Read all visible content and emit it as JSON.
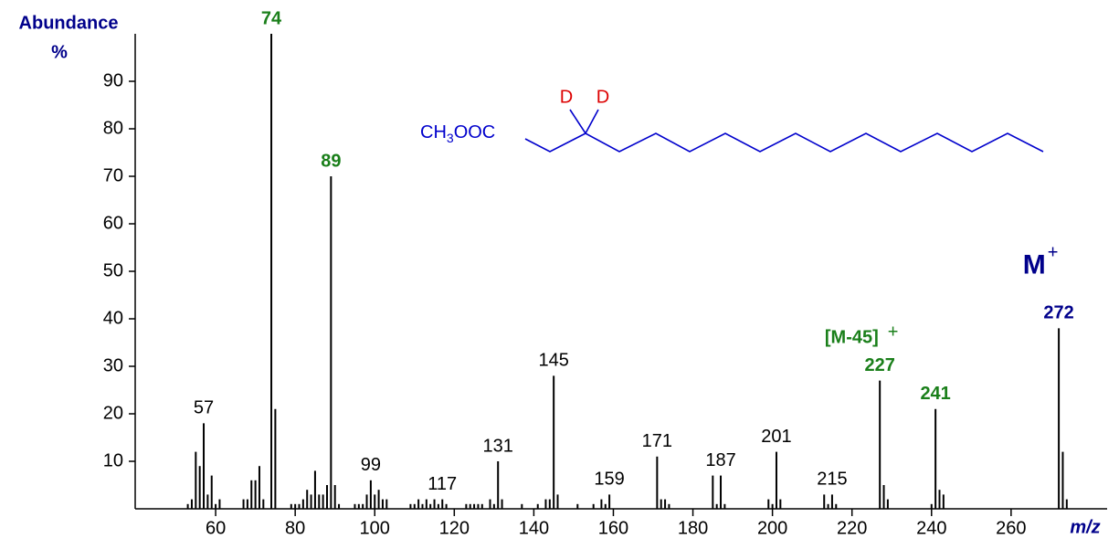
{
  "chart_data": {
    "type": "bar",
    "y_label": [
      "Abundance",
      "%"
    ],
    "x_label": "m/z",
    "xlim": [
      40,
      283
    ],
    "xticks": [
      60,
      80,
      100,
      120,
      140,
      160,
      180,
      200,
      220,
      240,
      260
    ],
    "ylim": [
      0,
      100
    ],
    "yticks": [
      10,
      20,
      30,
      40,
      50,
      60,
      70,
      80,
      90
    ],
    "color": "#000000",
    "x": [
      53,
      54,
      55,
      56,
      57,
      58,
      59,
      60,
      61,
      67,
      68,
      69,
      70,
      71,
      72,
      74,
      75,
      79,
      80,
      81,
      82,
      83,
      84,
      85,
      86,
      87,
      88,
      89,
      90,
      91,
      95,
      96,
      97,
      98,
      99,
      100,
      101,
      102,
      103,
      109,
      110,
      111,
      112,
      113,
      114,
      115,
      116,
      117,
      118,
      123,
      124,
      125,
      126,
      127,
      129,
      130,
      131,
      132,
      137,
      141,
      143,
      144,
      145,
      146,
      151,
      155,
      157,
      158,
      159,
      171,
      172,
      173,
      174,
      185,
      186,
      187,
      188,
      199,
      200,
      201,
      202,
      213,
      214,
      215,
      216,
      227,
      228,
      229,
      240,
      241,
      242,
      243,
      272,
      273,
      274
    ],
    "values": [
      1,
      2,
      12,
      9,
      18,
      3,
      7,
      1,
      2,
      2,
      2,
      6,
      6,
      9,
      2,
      100,
      21,
      1,
      1,
      1,
      2,
      4,
      3,
      8,
      3,
      3,
      5,
      70,
      5,
      1,
      1,
      1,
      1,
      3,
      6,
      3,
      4,
      2,
      2,
      1,
      1,
      2,
      1,
      2,
      1,
      2,
      1,
      2,
      1,
      1,
      1,
      1,
      1,
      1,
      2,
      1,
      10,
      2,
      1,
      1,
      2,
      2,
      28,
      3,
      1,
      1,
      2,
      1,
      3,
      11,
      2,
      2,
      1,
      7,
      1,
      7,
      1,
      2,
      1,
      12,
      2,
      3,
      1,
      3,
      1,
      27,
      5,
      2,
      1,
      21,
      4,
      3,
      38,
      12,
      2
    ],
    "peak_labels": [
      {
        "x": 57,
        "color": "#000000",
        "bold": false
      },
      {
        "x": 74,
        "color": "#1a7f1a",
        "bold": true
      },
      {
        "x": 89,
        "color": "#1a7f1a",
        "bold": true
      },
      {
        "x": 99,
        "color": "#000000",
        "bold": false
      },
      {
        "x": 117,
        "color": "#000000",
        "bold": false
      },
      {
        "x": 131,
        "color": "#000000",
        "bold": false
      },
      {
        "x": 145,
        "color": "#000000",
        "bold": false
      },
      {
        "x": 159,
        "color": "#000000",
        "bold": false
      },
      {
        "x": 171,
        "color": "#000000",
        "bold": false
      },
      {
        "x": 187,
        "color": "#000000",
        "bold": false
      },
      {
        "x": 201,
        "color": "#000000",
        "bold": false
      },
      {
        "x": 215,
        "color": "#000000",
        "bold": false
      },
      {
        "x": 227,
        "color": "#1a7f1a",
        "bold": true
      },
      {
        "x": 241,
        "color": "#1a7f1a",
        "bold": true
      },
      {
        "x": 272,
        "color": "#00008b",
        "bold": true
      }
    ],
    "annotations": [
      {
        "text": "[M-45]",
        "sup": "+",
        "color": "#1a7f1a"
      },
      {
        "text": "M",
        "sup": "+",
        "color": "#00008b"
      }
    ],
    "structure": {
      "ester": [
        "CH",
        "3",
        "OOC"
      ],
      "deuterium": [
        "D",
        "D"
      ]
    }
  }
}
